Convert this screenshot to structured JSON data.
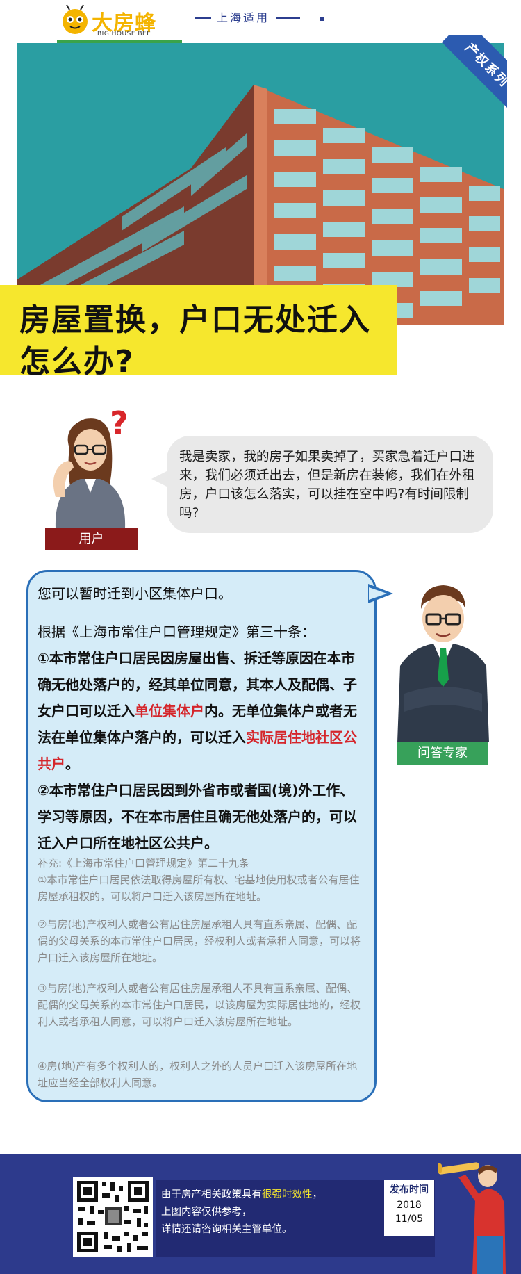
{
  "header": {
    "brand_name": "大房蜂",
    "brand_sub": "BIG HOUSE BEE",
    "city_label": "上海适用"
  },
  "hero": {
    "badge": "产权系列",
    "title_line1": "房屋置换，户口无处迁入",
    "title_line2": "怎么办?"
  },
  "question": {
    "role_label": "用户",
    "text": "我是卖家，我的房子如果卖掉了，买家急着迁户口进来，我们必须迁出去，但是新房在装修，我们在外租房，户口该怎么落实，可以挂在空中吗?有时间限制吗?"
  },
  "answer": {
    "role_label": "问答专家",
    "lead": "您可以暂时迁到小区集体户口。",
    "reference": "根据《上海市常住户口管理规定》第三十条：",
    "point1_a": "①本市常住户口居民因房屋出售、拆迁等原因在本市确无他处落户的，经其单位同意，其本人及配偶、子女户口可以迁入",
    "point1_hl1": "单位集体户",
    "point1_b": "内。无单位集体户或者无法在单位集体户落户的，可以迁入",
    "point1_hl2": "实际居住地社区公共户",
    "point1_c": "。",
    "point2": "②本市常住户口居民因到外省市或者国(境)外工作、学习等原因，不在本市居住且确无他处落户的，可以迁入户口所在地社区公共户。",
    "supplement_title": "补充:《上海市常住户口管理规定》第二十九条",
    "supplement": [
      "①本市常住户口居民依法取得房屋所有权、宅基地使用权或者公有居住房屋承租权的，可以将户口迁入该房屋所在地址。",
      "②与房(地)产权利人或者公有居住房屋承租人具有直系亲属、配偶、配偶的父母关系的本市常住户口居民，经权利人或者承租人同意，可以将户口迁入该房屋所在地址。",
      "③与房(地)产权利人或者公有居住房屋承租人不具有直系亲属、配偶、配偶的父母关系的本市常住户口居民，以该房屋为实际居住地的，经权利人或者承租人同意，可以将户口迁入该房屋所在地址。",
      "④房(地)产有多个权利人的，权利人之外的人员户口迁入该房屋所在地址应当经全部权利人同意。"
    ]
  },
  "footer": {
    "notice_a": "由于房产相关政策具有",
    "notice_hl": "很强时效性",
    "notice_b": "，",
    "notice_line2": "上图内容仅供参考，",
    "notice_line3": "详情还请咨询相关主管单位。",
    "date_title": "发布时间",
    "date_year": "2018",
    "date_md": "11/05"
  },
  "colors": {
    "yellow": "#f6e72d",
    "navy": "#2d3a8c",
    "answer_border": "#2a6fb8",
    "highlight_red": "#d5252b",
    "expert_green": "#37a15a",
    "user_red": "#8b1a1a"
  }
}
